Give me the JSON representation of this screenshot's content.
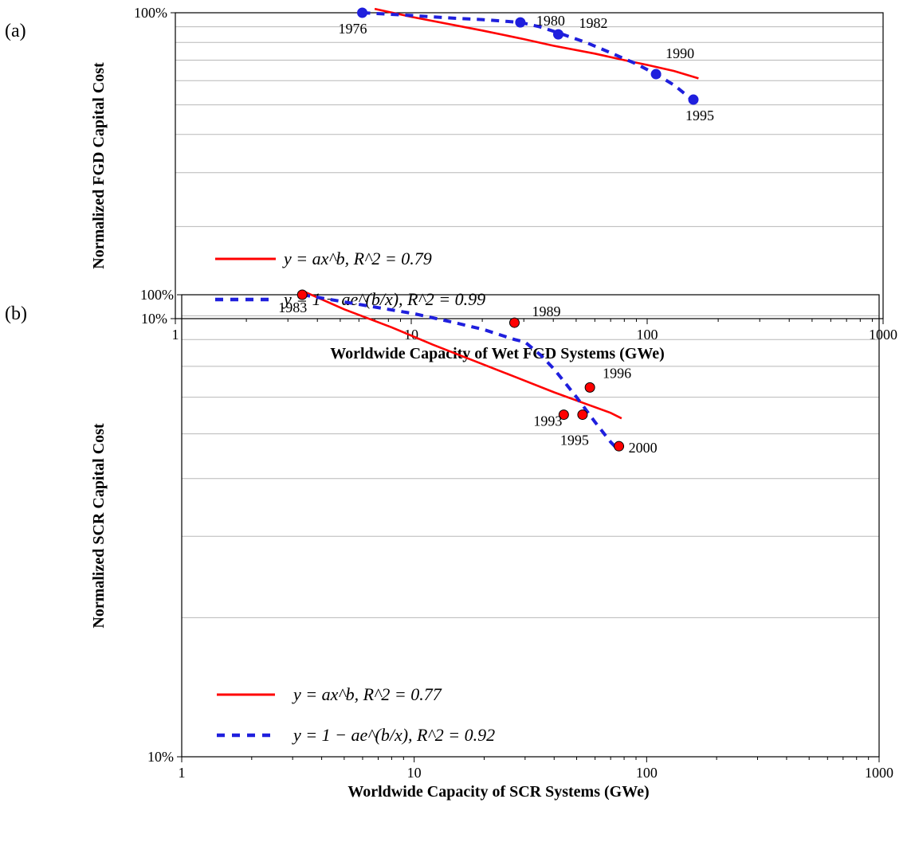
{
  "chart_data": [
    {
      "type": "scatter",
      "panel_label": "(a)",
      "xlabel": "Worldwide Capacity of Wet FGD Systems (GWe)",
      "ylabel": "Normalized FGD Capital Cost",
      "xscale": "log",
      "yscale": "log",
      "xlim": [
        1,
        1000
      ],
      "ylim": [
        0.1,
        1.0
      ],
      "x_ticks": [
        "1",
        "10",
        "100",
        "1000"
      ],
      "y_ticks": [
        "10%",
        "100%"
      ],
      "grid": "horizontal minor gridlines",
      "marker_color": "#1f1fdd",
      "points": [
        {
          "x": 6.2,
          "y": 1.0,
          "label": "1976"
        },
        {
          "x": 29,
          "y": 0.93,
          "label": "1980"
        },
        {
          "x": 42,
          "y": 0.85,
          "label": "1982"
        },
        {
          "x": 109,
          "y": 0.63,
          "label": "1990"
        },
        {
          "x": 157,
          "y": 0.52,
          "label": "1995"
        }
      ],
      "series": [
        {
          "name": "y = ax^b, R^2 = 0.79",
          "color": "#ff0000",
          "style": "solid",
          "x": [
            7,
            10,
            20,
            30,
            40,
            60,
            80,
            100,
            130,
            165
          ],
          "y": [
            1.03,
            0.97,
            0.875,
            0.82,
            0.78,
            0.735,
            0.7,
            0.675,
            0.645,
            0.61
          ]
        },
        {
          "name": "y = 1 - ae^(b/x), R^2 = 0.99",
          "color": "#1f1fdd",
          "style": "dashed",
          "x": [
            6.2,
            10,
            15,
            20,
            29,
            35,
            42,
            55,
            70,
            90,
            109,
            130,
            160
          ],
          "y": [
            1.0,
            0.98,
            0.96,
            0.95,
            0.93,
            0.9,
            0.86,
            0.8,
            0.74,
            0.68,
            0.63,
            0.58,
            0.51
          ]
        }
      ],
      "legend": [
        {
          "style": "solid",
          "color": "#ff0000",
          "text": "y = ax^b, R^2 = 0.79"
        },
        {
          "style": "dashed",
          "color": "#1f1fdd",
          "text": "y = 1 − ae^(b/x), R^2 = 0.99"
        }
      ],
      "legend_position": "lower-left"
    },
    {
      "type": "scatter",
      "panel_label": "(b)",
      "xlabel": "Worldwide Capacity of SCR Systems (GWe)",
      "ylabel": "Normalized SCR Capital Cost",
      "xscale": "log",
      "yscale": "log",
      "xlim": [
        1,
        1000
      ],
      "ylim": [
        0.1,
        1.0
      ],
      "x_ticks": [
        "1",
        "10",
        "100",
        "1000"
      ],
      "y_ticks": [
        "10%",
        "100%"
      ],
      "grid": "horizontal minor gridlines",
      "marker_color": "#ff0000",
      "points": [
        {
          "x": 3.3,
          "y": 1.0,
          "label": "1983"
        },
        {
          "x": 27,
          "y": 0.87,
          "label": "1989"
        },
        {
          "x": 57,
          "y": 0.63,
          "label": "1996"
        },
        {
          "x": 44,
          "y": 0.55,
          "label": "1993"
        },
        {
          "x": 53,
          "y": 0.55,
          "label": "1995"
        },
        {
          "x": 76,
          "y": 0.47,
          "label": "2000"
        }
      ],
      "series": [
        {
          "name": "y = ax^b, R^2 = 0.77",
          "color": "#ff0000",
          "style": "solid",
          "x": [
            3.3,
            5,
            8,
            12,
            18,
            27,
            40,
            55,
            70,
            78
          ],
          "y": [
            1.02,
            0.93,
            0.85,
            0.78,
            0.72,
            0.665,
            0.615,
            0.58,
            0.555,
            0.54
          ]
        },
        {
          "name": "y = 1 - ae^(b/x), R^2 = 0.92",
          "color": "#1f1fdd",
          "style": "dashed",
          "x": [
            3.3,
            6,
            10,
            15,
            20,
            27,
            30,
            35,
            40,
            50,
            60,
            70,
            76
          ],
          "y": [
            1.0,
            0.95,
            0.91,
            0.87,
            0.84,
            0.8,
            0.79,
            0.74,
            0.69,
            0.6,
            0.53,
            0.48,
            0.46
          ]
        }
      ],
      "legend": [
        {
          "style": "solid",
          "color": "#ff0000",
          "text": "y = ax^b, R^2 = 0.77"
        },
        {
          "style": "dashed",
          "color": "#1f1fdd",
          "text": "y = 1 − ae^(b/x), R^2 = 0.92"
        }
      ],
      "legend_position": "lower-left"
    }
  ]
}
